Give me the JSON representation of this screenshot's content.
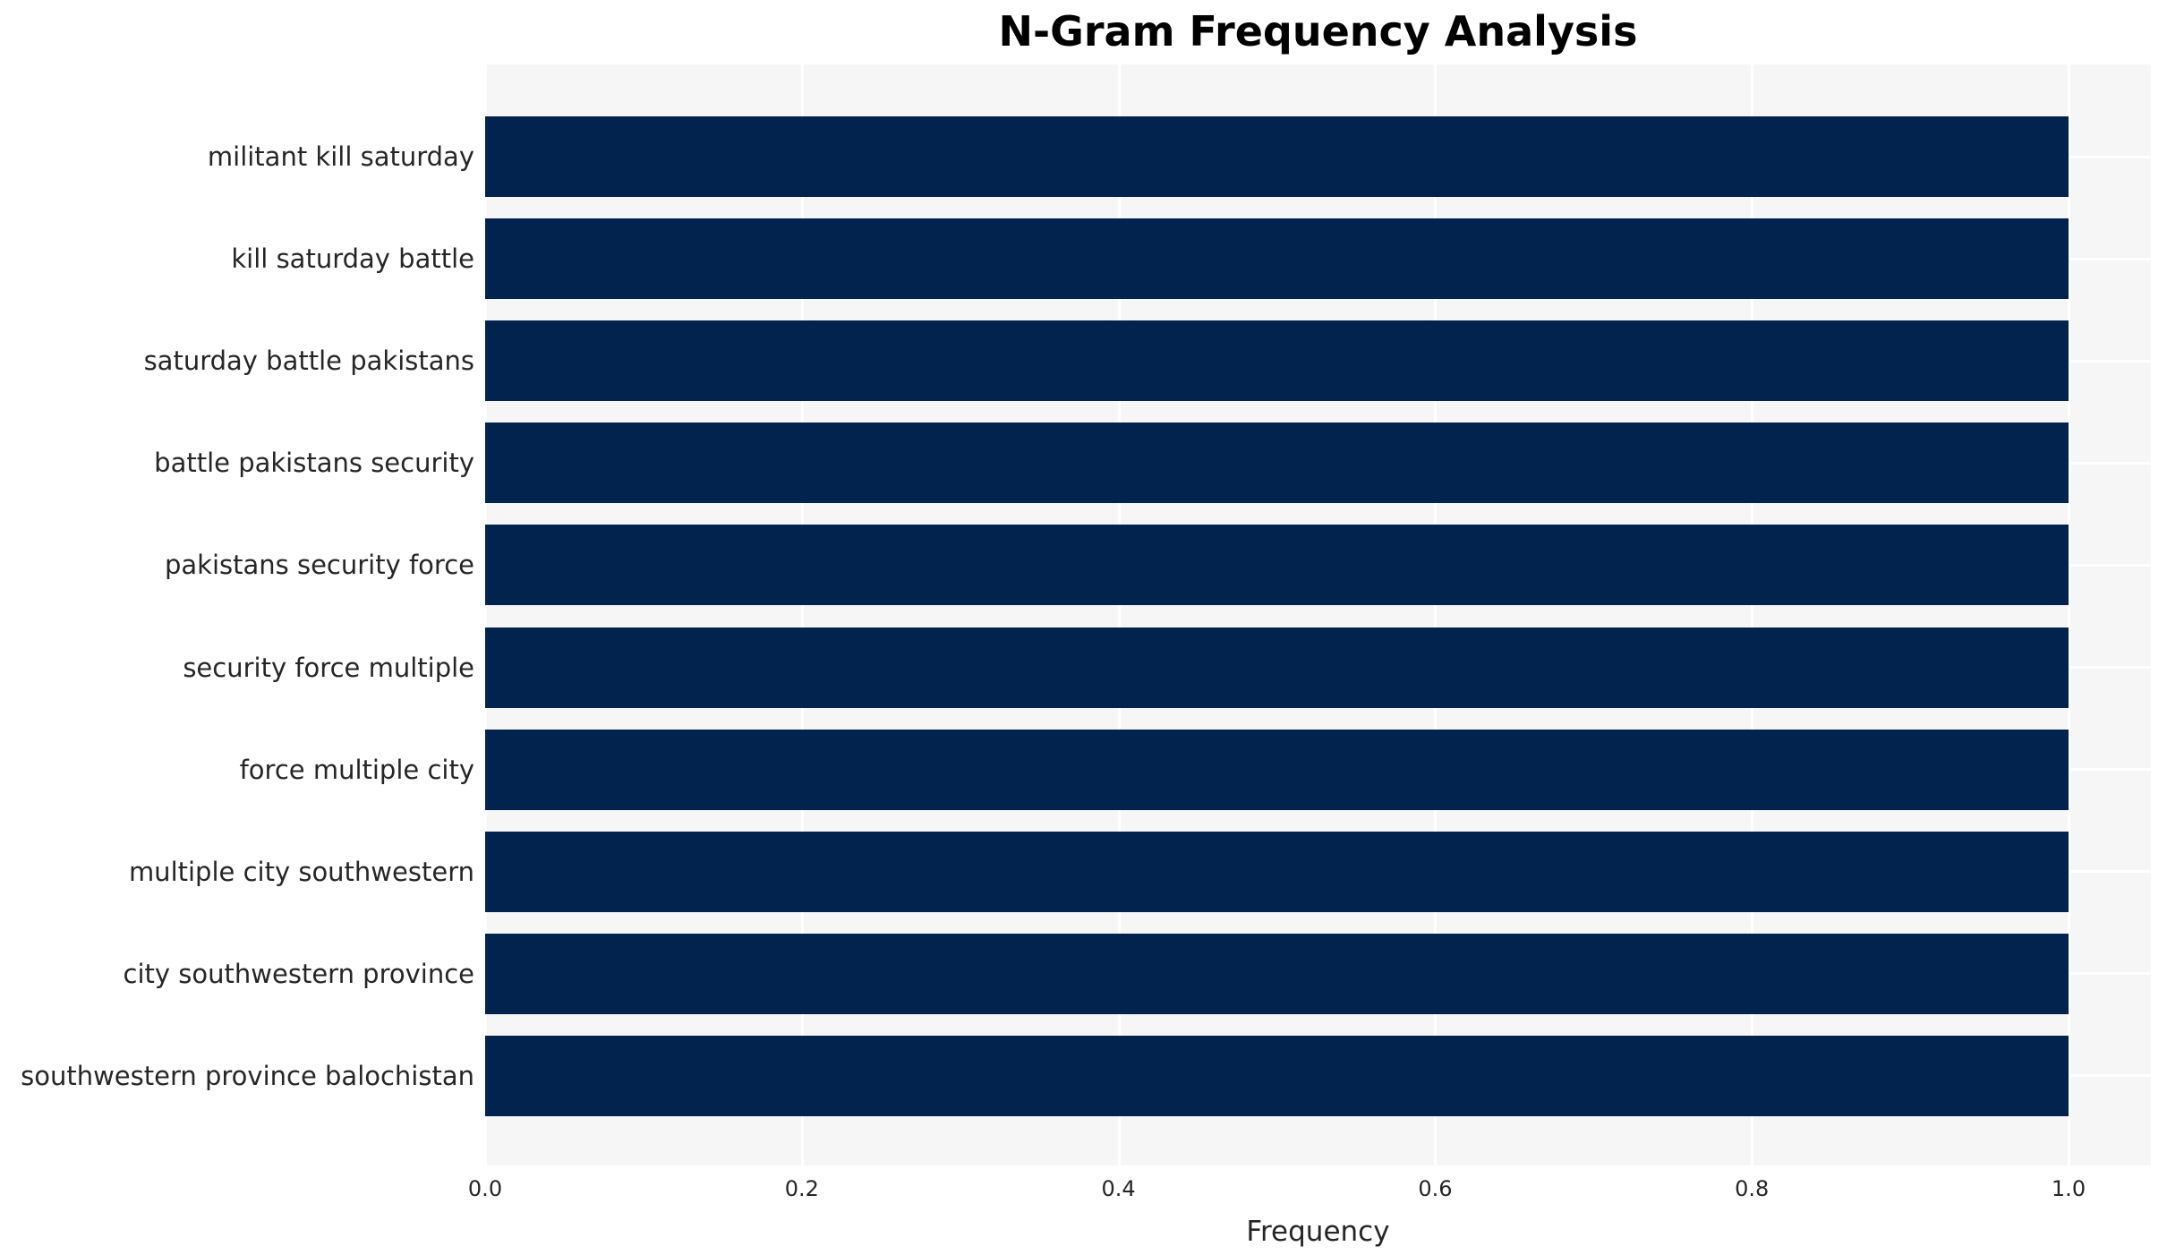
{
  "chart_data": {
    "type": "bar",
    "orientation": "horizontal",
    "title": "N-Gram Frequency Analysis",
    "xlabel": "Frequency",
    "ylabel": "",
    "categories": [
      "militant kill saturday",
      "kill saturday battle",
      "saturday battle pakistans",
      "battle pakistans security",
      "pakistans security force",
      "security force multiple",
      "force multiple city",
      "multiple city southwestern",
      "city southwestern province",
      "southwestern province balochistan"
    ],
    "values": [
      1.0,
      1.0,
      1.0,
      1.0,
      1.0,
      1.0,
      1.0,
      1.0,
      1.0,
      1.0
    ],
    "xtick_labels": [
      "0.0",
      "0.2",
      "0.4",
      "0.6",
      "0.8",
      "1.0"
    ],
    "xtick_values": [
      0.0,
      0.2,
      0.4,
      0.6,
      0.8,
      1.0
    ],
    "xlim": [
      0,
      1.052
    ],
    "grid": "on",
    "grid_style": "white vertical lines at x ticks and horizontal lines at category centers over light gray panel",
    "legend": "none",
    "colors": {
      "bar": "#01234e",
      "plot_background": "#f6f6f7",
      "gridline": "#ffffff",
      "title_text": "#000000",
      "tick_text": "#262626"
    }
  }
}
